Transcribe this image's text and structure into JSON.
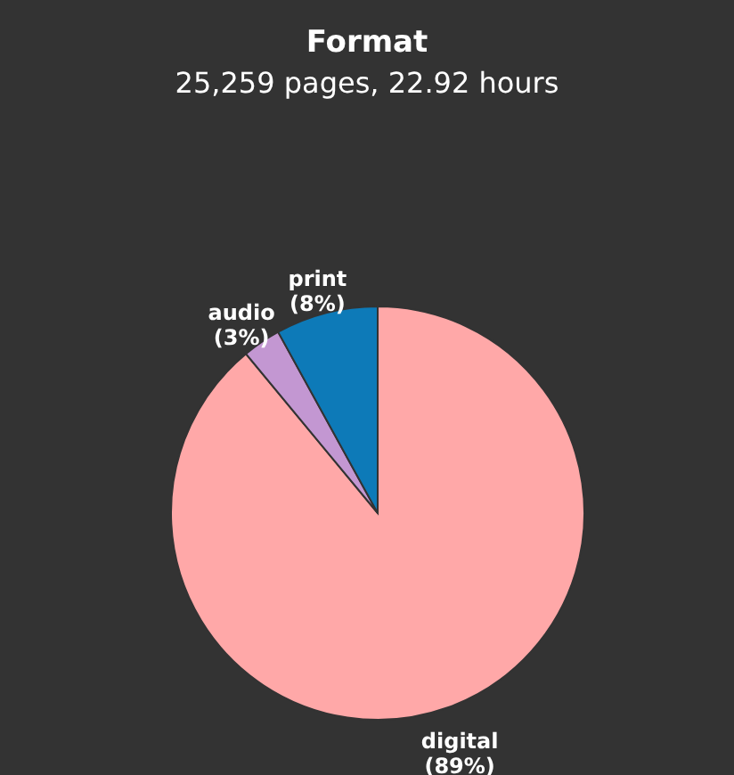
{
  "chart_data": {
    "type": "pie",
    "title": "Format",
    "subtitle": "25,259 pages, 22.92 hours",
    "categories": [
      "digital",
      "audio",
      "print"
    ],
    "values": [
      89,
      3,
      8
    ],
    "colors": [
      "#ffa8a8",
      "#c397d2",
      "#0d7ab8"
    ],
    "value_labels": [
      "(89%)",
      "(3%)",
      "(8%)"
    ],
    "legend": false
  }
}
